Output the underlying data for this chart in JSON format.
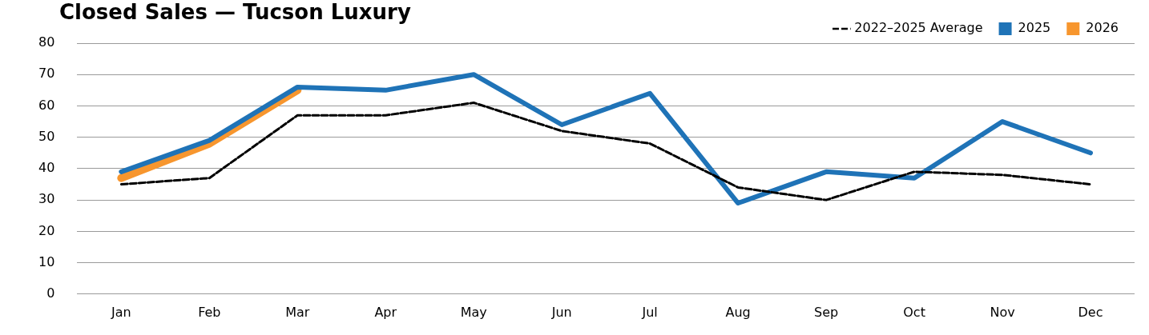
{
  "chart_data": {
    "type": "line",
    "title": "Closed Sales — Tucson Luxury",
    "categories": [
      "Jan",
      "Feb",
      "Mar",
      "Apr",
      "May",
      "Jun",
      "Jul",
      "Aug",
      "Sep",
      "Oct",
      "Nov",
      "Dec"
    ],
    "series": [
      {
        "name": "2022–2025 Average",
        "color": "#000000",
        "line_style": "dashed",
        "values": [
          35,
          37,
          57,
          57,
          61,
          52,
          48,
          34,
          30,
          39,
          38,
          35
        ]
      },
      {
        "name": "2025",
        "color": "#1f73b7",
        "line_style": "solid",
        "values": [
          39,
          49,
          66,
          65,
          70,
          54,
          64,
          29,
          39,
          37,
          55,
          45
        ]
      },
      {
        "name": "2026",
        "color": "#f7962e",
        "line_style": "solid",
        "values": [
          37,
          48,
          65,
          null,
          null,
          null,
          null,
          null,
          null,
          null,
          null,
          null
        ]
      }
    ],
    "ylim": [
      0,
      80
    ],
    "yticks": [
      0,
      10,
      20,
      30,
      40,
      50,
      60,
      70,
      80
    ],
    "grid": "y",
    "legend": "top right",
    "marker": "none"
  }
}
